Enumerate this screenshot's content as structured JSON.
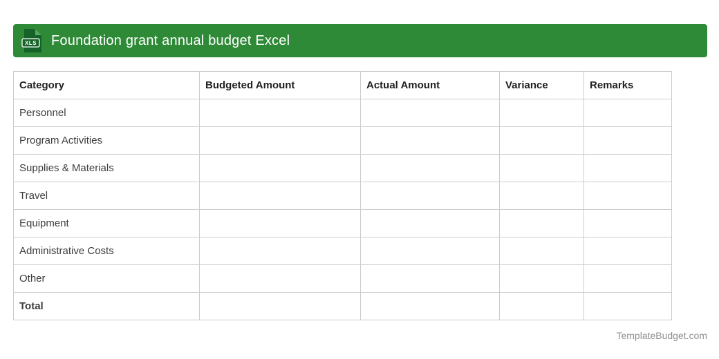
{
  "header": {
    "title": "Foundation grant annual budget Excel",
    "badge_label": "XLS",
    "bar_color": "#2f8a38",
    "icon_color": "#156329",
    "icon_fold_color": "#55a763",
    "title_color": "#ffffff"
  },
  "table": {
    "columns": [
      "Category",
      "Budgeted Amount",
      "Actual Amount",
      "Variance",
      "Remarks"
    ],
    "rows": [
      {
        "cells": [
          "Personnel",
          "",
          "",
          "",
          ""
        ],
        "bold": false
      },
      {
        "cells": [
          "Program Activities",
          "",
          "",
          "",
          ""
        ],
        "bold": false
      },
      {
        "cells": [
          "Supplies & Materials",
          "",
          "",
          "",
          ""
        ],
        "bold": false
      },
      {
        "cells": [
          "Travel",
          "",
          "",
          "",
          ""
        ],
        "bold": false
      },
      {
        "cells": [
          "Equipment",
          "",
          "",
          "",
          ""
        ],
        "bold": false
      },
      {
        "cells": [
          "Administrative Costs",
          "",
          "",
          "",
          ""
        ],
        "bold": false
      },
      {
        "cells": [
          "Other",
          "",
          "",
          "",
          ""
        ],
        "bold": false
      },
      {
        "cells": [
          "Total",
          "",
          "",
          "",
          ""
        ],
        "bold": true
      }
    ],
    "border_color": "#cccccc",
    "header_text_color": "#212121",
    "body_text_color": "#3d3d3d"
  },
  "footer": {
    "watermark": "TemplateBudget.com",
    "color": "#8f8f8f"
  }
}
